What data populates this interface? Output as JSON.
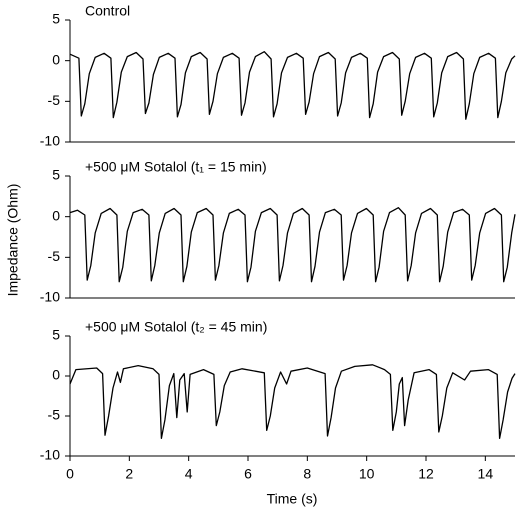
{
  "chart_data": [
    {
      "type": "line",
      "title": "Control",
      "ylabel": "Impedance (Ohm)",
      "x": [
        0,
        0.3,
        0.38,
        0.5,
        0.65,
        0.85,
        1.15,
        1.38,
        1.46,
        1.58,
        1.73,
        1.93,
        2.23,
        2.46,
        2.54,
        2.66,
        2.81,
        3.01,
        3.31,
        3.54,
        3.62,
        3.74,
        3.89,
        4.09,
        4.39,
        4.62,
        4.7,
        4.82,
        4.97,
        5.17,
        5.47,
        5.7,
        5.78,
        5.9,
        6.05,
        6.25,
        6.55,
        6.78,
        6.86,
        6.98,
        7.13,
        7.33,
        7.63,
        7.86,
        7.94,
        8.06,
        8.21,
        8.41,
        8.71,
        8.94,
        9.02,
        9.14,
        9.29,
        9.49,
        9.79,
        10.02,
        10.1,
        10.22,
        10.37,
        10.57,
        10.87,
        11.1,
        11.18,
        11.3,
        11.45,
        11.65,
        11.95,
        12.18,
        12.26,
        12.38,
        12.53,
        12.73,
        13.03,
        13.26,
        13.34,
        13.46,
        13.61,
        13.81,
        14.11,
        14.34,
        14.42,
        14.54,
        14.69,
        14.89,
        15
      ],
      "series": [
        {
          "color": "#000000",
          "values": [
            0.8,
            0.3,
            -6.8,
            -5.3,
            -1.6,
            0.4,
            0.9,
            0.3,
            -7,
            -5.1,
            -1.4,
            0.5,
            1,
            0.2,
            -6.5,
            -5.2,
            -1.7,
            0.4,
            0.9,
            0.3,
            -6.9,
            -5.4,
            -1.5,
            0.5,
            1,
            0.2,
            -6.6,
            -5,
            -1.6,
            0.4,
            0.9,
            0.3,
            -6.7,
            -5.2,
            -1.4,
            0.5,
            1.1,
            0.2,
            -6.9,
            -5.3,
            -1.5,
            0.4,
            0.9,
            0.3,
            -6.6,
            -5.1,
            -1.6,
            0.5,
            1,
            0.2,
            -6.8,
            -5.2,
            -1.5,
            0.4,
            0.9,
            0.3,
            -7,
            -5.3,
            -1.4,
            0.5,
            1,
            0.2,
            -6.7,
            -5,
            -1.6,
            0.4,
            0.9,
            0.3,
            -6.9,
            -5.2,
            -1.5,
            0.5,
            1,
            0.2,
            -7.2,
            -5.3,
            -1.6,
            0.4,
            0.9,
            0.3,
            -7,
            -5,
            -1.5,
            0.2,
            0.6
          ]
        }
      ],
      "ylim": [
        -10,
        5
      ],
      "yticks": [
        -10,
        -5,
        0,
        5
      ],
      "xlim": [
        0,
        15
      ]
    },
    {
      "type": "line",
      "title": "+500 μM Sotalol (t₁ = 15 min)",
      "x": [
        0,
        0.25,
        0.5,
        0.58,
        0.7,
        0.85,
        1.05,
        1.35,
        1.58,
        1.66,
        1.78,
        1.93,
        2.13,
        2.43,
        2.66,
        2.74,
        2.86,
        3.01,
        3.21,
        3.51,
        3.74,
        3.82,
        3.94,
        4.09,
        4.29,
        4.59,
        4.82,
        4.9,
        5.02,
        5.17,
        5.37,
        5.67,
        5.9,
        5.98,
        6.1,
        6.25,
        6.45,
        6.75,
        6.98,
        7.06,
        7.18,
        7.33,
        7.53,
        7.83,
        8.06,
        8.14,
        8.26,
        8.41,
        8.61,
        8.91,
        9.14,
        9.22,
        9.34,
        9.49,
        9.69,
        9.99,
        10.22,
        10.3,
        10.42,
        10.57,
        10.77,
        11.07,
        11.3,
        11.38,
        11.5,
        11.65,
        11.85,
        12.15,
        12.38,
        12.46,
        12.58,
        12.73,
        12.93,
        13.23,
        13.46,
        13.54,
        13.66,
        13.81,
        14.01,
        14.31,
        14.54,
        14.62,
        14.74,
        14.89,
        15
      ],
      "series": [
        {
          "color": "#000000",
          "values": [
            0.5,
            0.8,
            0.2,
            -7.8,
            -6,
            -2,
            0.4,
            1,
            0.2,
            -8,
            -6.2,
            -1.8,
            0.5,
            0.9,
            0.2,
            -7.9,
            -6,
            -2,
            0.4,
            1,
            0.2,
            -8,
            -6.1,
            -1.9,
            0.5,
            1,
            0.2,
            -7.8,
            -6,
            -2,
            0.4,
            0.9,
            0.2,
            -8,
            -6.2,
            -1.8,
            0.5,
            1,
            0.2,
            -7.9,
            -6,
            -2,
            0.4,
            1,
            0.2,
            -8,
            -6.1,
            -1.9,
            0.5,
            0.9,
            0.2,
            -7.8,
            -6,
            -2,
            0.4,
            1,
            0.2,
            -8,
            -6.2,
            -1.8,
            0.5,
            1.1,
            0.2,
            -7.9,
            -6,
            -2,
            0.4,
            1,
            0.2,
            -8,
            -6.1,
            -1.9,
            0.5,
            0.9,
            0.2,
            -7.8,
            -6,
            -2,
            0.4,
            1,
            0.2,
            -8,
            -6.2,
            -2,
            0.3
          ]
        }
      ],
      "ylim": [
        -10,
        5
      ],
      "yticks": [
        -10,
        -5,
        0,
        5
      ],
      "xlim": [
        0,
        15
      ]
    },
    {
      "type": "line",
      "title": "+500 μM Sotalol (t₂ = 45 min)",
      "xlabel": "Time (s)",
      "x": [
        0,
        0.2,
        0.9,
        1.1,
        1.18,
        1.3,
        1.45,
        1.6,
        1.7,
        1.8,
        2.3,
        2.8,
        3,
        3.08,
        3.2,
        3.35,
        3.5,
        3.6,
        3.7,
        3.85,
        3.95,
        4.05,
        4.5,
        4.85,
        4.93,
        5.05,
        5.2,
        5.4,
        5.8,
        6.55,
        6.63,
        6.75,
        6.9,
        7.1,
        7.3,
        7.45,
        8,
        8.6,
        8.68,
        8.8,
        8.95,
        9.15,
        9.6,
        10.2,
        10.6,
        10.8,
        10.88,
        11,
        11.1,
        11.2,
        11.28,
        11.4,
        11.6,
        12.1,
        12.35,
        12.43,
        12.55,
        12.7,
        12.9,
        13.3,
        13.5,
        14.1,
        14.4,
        14.48,
        14.6,
        14.75,
        14.9,
        15
      ],
      "series": [
        {
          "color": "#000000",
          "values": [
            -1,
            0.8,
            1,
            0.3,
            -7.4,
            -5,
            -1.5,
            0.5,
            -0.8,
            0.9,
            1.3,
            0.9,
            0.2,
            -7.8,
            -5.5,
            -1.2,
            0.3,
            -5.2,
            -0.5,
            0.3,
            -4.5,
            0.2,
            0.8,
            0.2,
            -6.2,
            -4.5,
            -1.2,
            0.5,
            0.9,
            0.4,
            -6.8,
            -5,
            -1.5,
            0.5,
            -1,
            0.6,
            1,
            0.3,
            -7.5,
            -5.2,
            -1.5,
            0.6,
            1.2,
            1.4,
            0.8,
            0.2,
            -6.8,
            -4.5,
            -1,
            -0.2,
            -6.2,
            -3,
            0.4,
            0.8,
            0.2,
            -7,
            -5,
            -1.5,
            0.4,
            -0.5,
            0.6,
            0.8,
            0.2,
            -7.8,
            -5.5,
            -2,
            -0.3,
            0.3
          ]
        }
      ],
      "ylim": [
        -10,
        5
      ],
      "yticks": [
        -10,
        -5,
        0,
        5
      ],
      "xlim": [
        0,
        15
      ],
      "xticks": [
        0,
        2,
        4,
        6,
        8,
        10,
        12,
        14
      ]
    }
  ]
}
